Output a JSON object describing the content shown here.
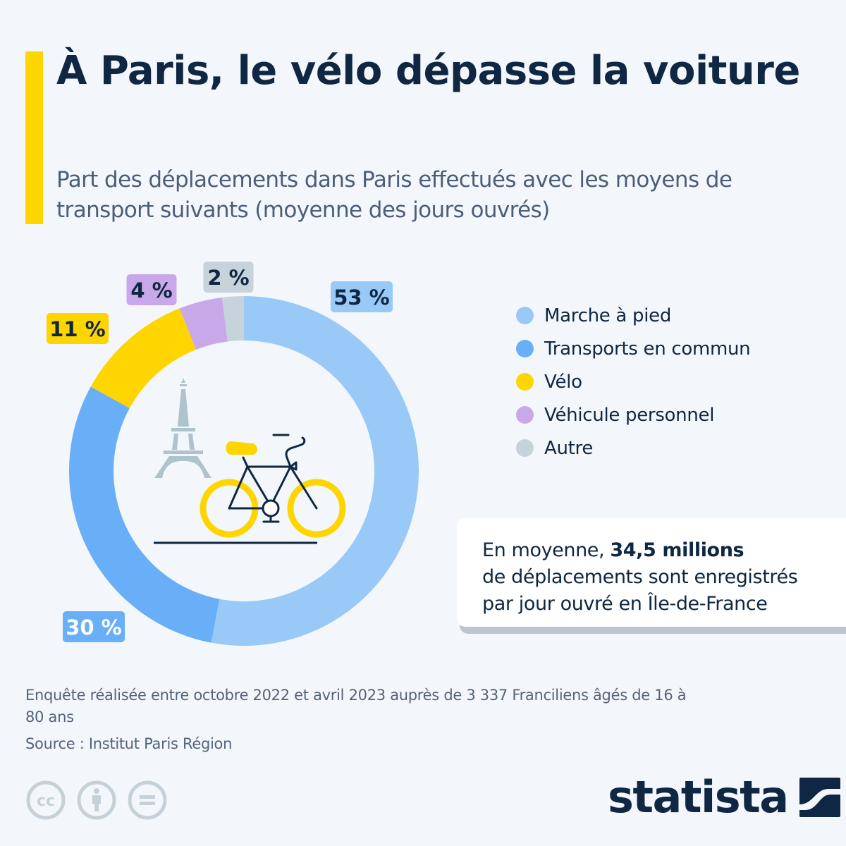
{
  "header": {
    "title": "À Paris, le vélo dépasse la voiture",
    "subtitle": "Part des déplacements dans Paris effectués avec les moyens de transport suivants (moyenne des jours ouvrés)"
  },
  "chart_data": {
    "type": "pie",
    "variant": "donut",
    "title": "À Paris, le vélo dépasse la voiture",
    "subtitle": "Part des déplacements dans Paris effectués avec les moyens de transport suivants (moyenne des jours ouvrés)",
    "unit": "%",
    "categories": [
      "Marche à pied",
      "Transports en commun",
      "Vélo",
      "Véhicule personnel",
      "Autre"
    ],
    "values": [
      53,
      30,
      11,
      4,
      2
    ],
    "labels": [
      "53 %",
      "30 %",
      "11 %",
      "4 %",
      "2 %"
    ],
    "colors": [
      "#99c9f7",
      "#68aff8",
      "#ffd500",
      "#c9a8ea",
      "#c6d3db"
    ],
    "label_text_colors": [
      "#0f2742",
      "#ffffff",
      "#0f2742",
      "#0f2742",
      "#0f2742"
    ],
    "start": "top",
    "direction": "clockwise",
    "legend_position": "right",
    "center_illustration": "eiffel-tower-and-bicycle"
  },
  "legend": {
    "items": [
      {
        "label": "Marche à pied",
        "color": "#99c9f7"
      },
      {
        "label": "Transports en commun",
        "color": "#68aff8"
      },
      {
        "label": "Vélo",
        "color": "#ffd500"
      },
      {
        "label": "Véhicule personnel",
        "color": "#c9a8ea"
      },
      {
        "label": "Autre",
        "color": "#c6d3db"
      }
    ]
  },
  "callout": {
    "prefix": "En moyenne, ",
    "highlight": "34,5 millions",
    "line2": "de déplacements sont enregistrés",
    "line3": "par jour ouvré en Île-de-France"
  },
  "footer": {
    "note": "Enquête réalisée entre octobre 2022 et avril 2023 auprès de 3 337 Franciliens âgés de 16 à 80 ans",
    "source": "Source : Institut Paris Région",
    "license_icons": [
      "cc-icon",
      "attribution-icon",
      "no-derivatives-icon"
    ],
    "brand": "statista"
  },
  "colors": {
    "accent": "#ffd500",
    "text_dark": "#0f2742",
    "text_muted": "#54637a",
    "background": "#f3f7fb"
  }
}
